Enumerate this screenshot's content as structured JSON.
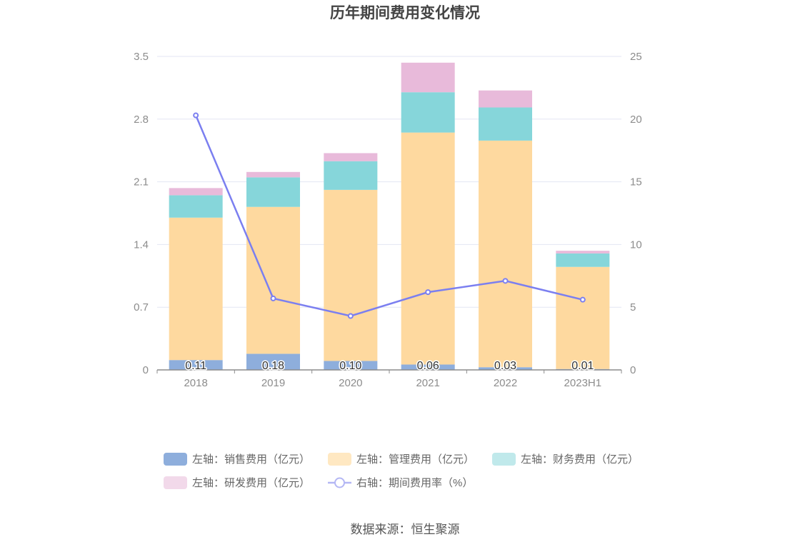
{
  "chart_data": {
    "type": "bar",
    "title": "历年期间费用变化情况",
    "categories": [
      "2018",
      "2019",
      "2020",
      "2021",
      "2022",
      "2023H1"
    ],
    "stacked": true,
    "series": [
      {
        "name": "左轴：销售费用（亿元）",
        "axis": "left",
        "type": "bar",
        "color": "#8eaedc",
        "values": [
          0.11,
          0.18,
          0.1,
          0.06,
          0.03,
          0.01
        ],
        "labels": [
          "0.11",
          "0.18",
          "0.10",
          "0.06",
          "0.03",
          "0.01"
        ]
      },
      {
        "name": "左轴：管理费用（亿元）",
        "axis": "left",
        "type": "bar",
        "color": "#fed99f",
        "values": [
          1.59,
          1.64,
          1.91,
          2.59,
          2.53,
          1.14
        ]
      },
      {
        "name": "左轴：财务费用（亿元）",
        "axis": "left",
        "type": "bar",
        "color": "#86d6da",
        "values": [
          0.25,
          0.33,
          0.32,
          0.45,
          0.37,
          0.15
        ]
      },
      {
        "name": "左轴：研发费用（亿元）",
        "axis": "left",
        "type": "bar",
        "color": "#e8bada",
        "values": [
          0.08,
          0.06,
          0.09,
          0.33,
          0.19,
          0.03
        ]
      },
      {
        "name": "右轴：期间费用率（%）",
        "axis": "right",
        "type": "line",
        "color": "#7b7ff0",
        "values": [
          20.3,
          5.7,
          4.3,
          6.2,
          7.1,
          5.6
        ]
      }
    ],
    "y_left": {
      "ylim": [
        0,
        3.5
      ],
      "ticks": [
        "0",
        "0.7",
        "1.4",
        "2.1",
        "2.8",
        "3.5"
      ]
    },
    "y_right": {
      "ylim": [
        0,
        25
      ],
      "ticks": [
        "0",
        "5",
        "10",
        "15",
        "20",
        "25"
      ]
    },
    "grid": true,
    "legend_position": "bottom",
    "legend_colors": [
      "#8eaedc",
      "#ffe8c2",
      "#c0e9eb",
      "#f2d9ea",
      "#7b7ff0"
    ]
  },
  "source": "数据来源：恒生聚源"
}
